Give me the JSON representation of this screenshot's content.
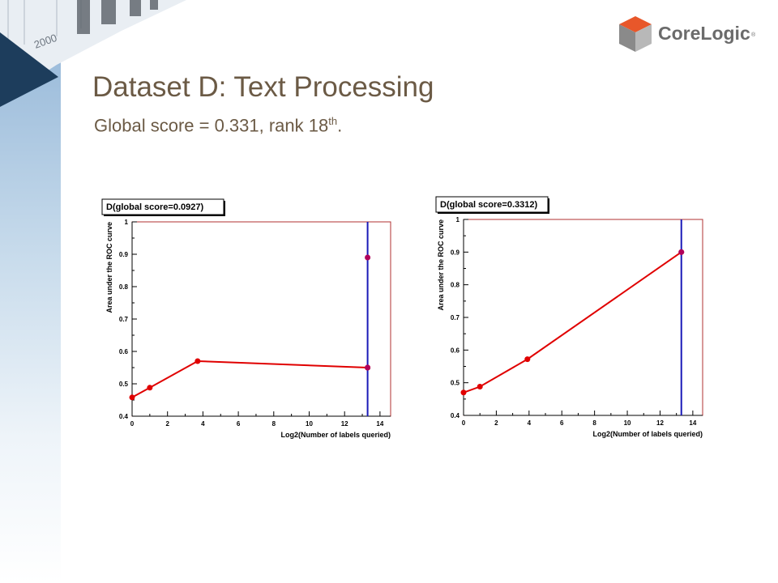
{
  "slide": {
    "title": "Dataset D: Text Processing",
    "subtitle_main": "Global score = 0.331, rank 18",
    "subtitle_sup": "th",
    "subtitle_end": ".",
    "logo_text": "CoreLogic",
    "logo_reg": "®",
    "background_year": "2000",
    "colors": {
      "title": "#6b5a45",
      "logo_orange": "#e8572a",
      "logo_gray": "#8a8a8a",
      "deco_navy": "#1d3d5c",
      "deco_blue": "#8fb3d6"
    }
  },
  "chart_data": [
    {
      "type": "line",
      "title": "D(global score=0.0927)",
      "xlabel": "Log2(Number of labels queried)",
      "ylabel": "Area under the ROC curve",
      "xlim": [
        0,
        14.6
      ],
      "ylim": [
        0.4,
        1.0
      ],
      "xticks": [
        0,
        2,
        4,
        6,
        8,
        10,
        12,
        14
      ],
      "yticks": [
        0.4,
        0.5,
        0.6,
        0.7,
        0.8,
        0.9,
        1
      ],
      "series": [
        {
          "color": "#e00000",
          "x": [
            0,
            1,
            3.7,
            13.3
          ],
          "y": [
            0.458,
            0.488,
            0.57,
            0.55
          ]
        }
      ],
      "extra_points": [
        {
          "x": 13.3,
          "y": 0.89,
          "color": "#b0005a"
        },
        {
          "x": 13.3,
          "y": 0.55,
          "color": "#b0005a"
        }
      ],
      "vline": {
        "x": 13.3,
        "color": "#1a1ab8"
      },
      "frame_color": "#b03030",
      "grid": false
    },
    {
      "type": "line",
      "title": "D(global score=0.3312)",
      "xlabel": "Log2(Number of labels queried)",
      "ylabel": "Area under the ROC curve",
      "xlim": [
        0,
        14.6
      ],
      "ylim": [
        0.4,
        1.0
      ],
      "xticks": [
        0,
        2,
        4,
        6,
        8,
        10,
        12,
        14
      ],
      "yticks": [
        0.4,
        0.5,
        0.6,
        0.7,
        0.8,
        0.9,
        1
      ],
      "series": [
        {
          "color": "#e00000",
          "x": [
            0,
            1,
            3.9,
            13.3
          ],
          "y": [
            0.47,
            0.488,
            0.572,
            0.9
          ]
        }
      ],
      "extra_points": [
        {
          "x": 13.3,
          "y": 0.9,
          "color": "#b0005a"
        }
      ],
      "vline": {
        "x": 13.3,
        "color": "#1a1ab8"
      },
      "frame_color": "#b03030",
      "grid": false
    }
  ]
}
